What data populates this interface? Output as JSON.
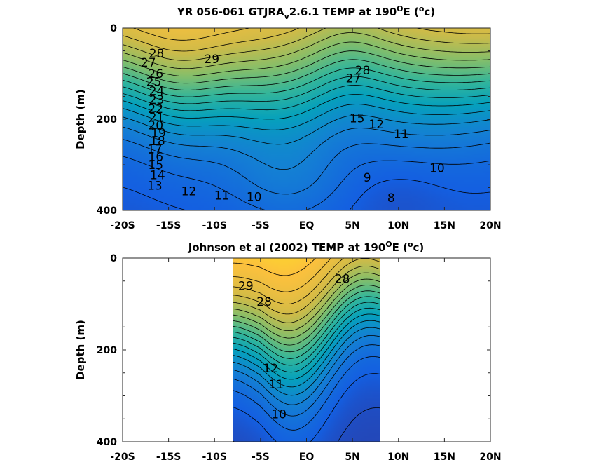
{
  "chart_data": [
    {
      "type": "heatmap",
      "title_parts": [
        "YR 056-061 GTJRA",
        "v",
        "2.6.1 TEMP at 190",
        "O",
        "E (",
        "o",
        "c)"
      ],
      "ylabel": "Depth (m)",
      "x_ticks": [
        "-20S",
        "-15S",
        "-10S",
        "-5S",
        "EQ",
        "5N",
        "10N",
        "15N",
        "20N"
      ],
      "x_tick_values": [
        -20,
        -15,
        -10,
        -5,
        0,
        5,
        10,
        15,
        20
      ],
      "y_ticks": [
        "0",
        "200",
        "400"
      ],
      "y_tick_values": [
        0,
        200,
        400
      ],
      "xlim": [
        -20,
        20
      ],
      "ylim": [
        400,
        0
      ],
      "data_xlim": [
        -20,
        20
      ],
      "colormap": "parula",
      "clim": [
        6,
        30
      ],
      "contour_interval": 1,
      "contour_labels": [
        {
          "text": "28",
          "lat": -16.3,
          "depth": 55
        },
        {
          "text": "27",
          "lat": -17.2,
          "depth": 75
        },
        {
          "text": "26",
          "lat": -16.4,
          "depth": 100
        },
        {
          "text": "25",
          "lat": -16.6,
          "depth": 118
        },
        {
          "text": "24",
          "lat": -16.3,
          "depth": 138
        },
        {
          "text": "23",
          "lat": -16.3,
          "depth": 157
        },
        {
          "text": "22",
          "lat": -16.4,
          "depth": 177
        },
        {
          "text": "21",
          "lat": -16.3,
          "depth": 195
        },
        {
          "text": "20",
          "lat": -16.4,
          "depth": 213
        },
        {
          "text": "19",
          "lat": -16.1,
          "depth": 230
        },
        {
          "text": "18",
          "lat": -16.2,
          "depth": 248
        },
        {
          "text": "17",
          "lat": -16.5,
          "depth": 265
        },
        {
          "text": "16",
          "lat": -16.4,
          "depth": 282
        },
        {
          "text": "15",
          "lat": -16.4,
          "depth": 300
        },
        {
          "text": "14",
          "lat": -16.2,
          "depth": 322
        },
        {
          "text": "13",
          "lat": -16.5,
          "depth": 345
        },
        {
          "text": "12",
          "lat": -12.8,
          "depth": 358
        },
        {
          "text": "11",
          "lat": -9.2,
          "depth": 367
        },
        {
          "text": "10",
          "lat": -5.7,
          "depth": 370
        },
        {
          "text": "29",
          "lat": -10.3,
          "depth": 68
        },
        {
          "text": "28",
          "lat": 6.1,
          "depth": 92
        },
        {
          "text": "27",
          "lat": 5.1,
          "depth": 110
        },
        {
          "text": "15",
          "lat": 5.5,
          "depth": 198
        },
        {
          "text": "12",
          "lat": 7.6,
          "depth": 211
        },
        {
          "text": "11",
          "lat": 10.3,
          "depth": 232
        },
        {
          "text": "10",
          "lat": 14.2,
          "depth": 307
        },
        {
          "text": "9",
          "lat": 6.6,
          "depth": 328
        },
        {
          "text": "8",
          "lat": 9.2,
          "depth": 372
        }
      ]
    },
    {
      "type": "heatmap",
      "title_parts": [
        "Johnson et al (2002) TEMP at 190",
        "O",
        "E (",
        "o",
        "c)"
      ],
      "ylabel": "Depth (m)",
      "x_ticks": [
        "-20S",
        "-15S",
        "-10S",
        "-5S",
        "EQ",
        "5N",
        "10N",
        "15N",
        "20N"
      ],
      "x_tick_values": [
        -20,
        -15,
        -10,
        -5,
        0,
        5,
        10,
        15,
        20
      ],
      "y_ticks": [
        "0",
        "200",
        "400"
      ],
      "y_tick_values": [
        0,
        200,
        400
      ],
      "xlim": [
        -20,
        20
      ],
      "ylim": [
        400,
        0
      ],
      "data_xlim": [
        -8,
        8
      ],
      "colormap": "parula",
      "clim": [
        6,
        30
      ],
      "contour_interval": 1,
      "contour_labels": [
        {
          "text": "29",
          "lat": -6.6,
          "depth": 60
        },
        {
          "text": "28",
          "lat": -4.6,
          "depth": 95
        },
        {
          "text": "28",
          "lat": 3.9,
          "depth": 45
        },
        {
          "text": "12",
          "lat": -3.9,
          "depth": 240
        },
        {
          "text": "11",
          "lat": -3.3,
          "depth": 275
        },
        {
          "text": "10",
          "lat": -3.0,
          "depth": 340
        }
      ]
    }
  ]
}
